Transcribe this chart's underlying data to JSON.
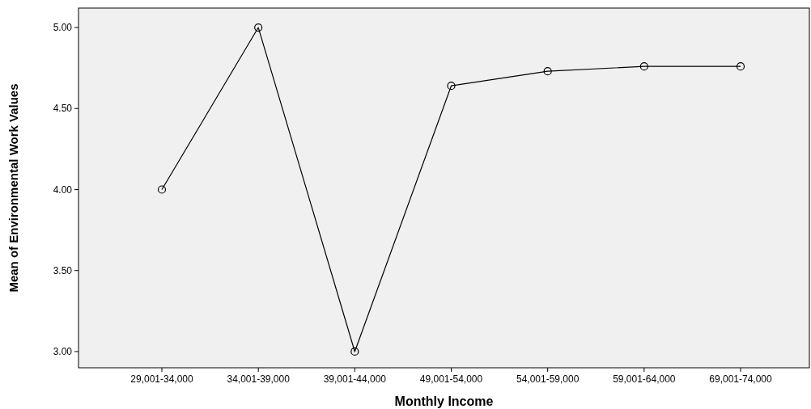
{
  "chart_data": {
    "type": "line",
    "xlabel": "Monthly Income",
    "ylabel": "Mean of Environmental Work Values",
    "categories": [
      "29,001-34,000",
      "34,001-39,000",
      "39,001-44,000",
      "49,001-54,000",
      "54,001-59,000",
      "59,001-64,000",
      "69,001-74,000"
    ],
    "values": [
      4.0,
      5.0,
      3.0,
      4.64,
      4.73,
      4.76,
      4.76
    ],
    "color": "#000000",
    "marker": "circle",
    "line_style": "solid",
    "ylim": [
      2.9,
      5.12
    ],
    "yticks": [
      {
        "value": 3,
        "label": "3.00"
      },
      {
        "value": 3.5,
        "label": "3.50"
      },
      {
        "value": 4,
        "label": "4.00"
      },
      {
        "value": 4.5,
        "label": "4.50"
      },
      {
        "value": 5,
        "label": "5.00"
      }
    ],
    "grid": false
  }
}
